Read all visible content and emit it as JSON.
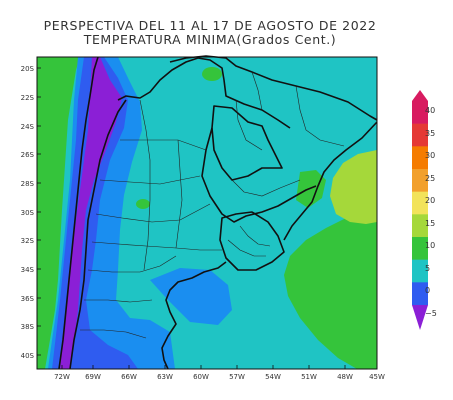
{
  "title_line1": "PERSPECTIVA DEL 11 AL 17 DE AGOSTO DE 2022",
  "title_line2": "TEMPERATURA MINIMA(Grados Cent.)",
  "lat_labels": [
    "20S",
    "22S",
    "24S",
    "26S",
    "28S",
    "30S",
    "32S",
    "34S",
    "36S",
    "38S",
    "40S"
  ],
  "lon_labels": [
    "72W",
    "69W",
    "66W",
    "63W",
    "60W",
    "57W",
    "54W",
    "51W",
    "48W",
    "45W"
  ],
  "colorbar": {
    "labels": [
      "40",
      "35",
      "30",
      "25",
      "20",
      "15",
      "10",
      "5",
      "0",
      "−5"
    ],
    "levels": [
      {
        "min": 35,
        "max": 40,
        "color": "#d81b60"
      },
      {
        "min": 30,
        "max": 35,
        "color": "#e53935"
      },
      {
        "min": 25,
        "max": 30,
        "color": "#f57c00"
      },
      {
        "min": 20,
        "max": 25,
        "color": "#f2a02c"
      },
      {
        "min": 15,
        "max": 20,
        "color": "#f2e35a"
      },
      {
        "min": 10,
        "max": 15,
        "color": "#a5d83a"
      },
      {
        "min": 5,
        "max": 10,
        "color": "#35c43b"
      },
      {
        "min": 0,
        "max": 5,
        "color": "#1fc4c4"
      },
      {
        "min": -5,
        "max": 0,
        "color": "#2f5cf0"
      }
    ],
    "below_min_color": "#8b1fd6"
  },
  "colors": {
    "ocean_green": "#35c43b",
    "land_cyan": "#1fc4c4",
    "light_blue": "#1a8ef0",
    "blue": "#2f5cf0",
    "purple": "#8b1fd6",
    "lime": "#a5d83a"
  }
}
